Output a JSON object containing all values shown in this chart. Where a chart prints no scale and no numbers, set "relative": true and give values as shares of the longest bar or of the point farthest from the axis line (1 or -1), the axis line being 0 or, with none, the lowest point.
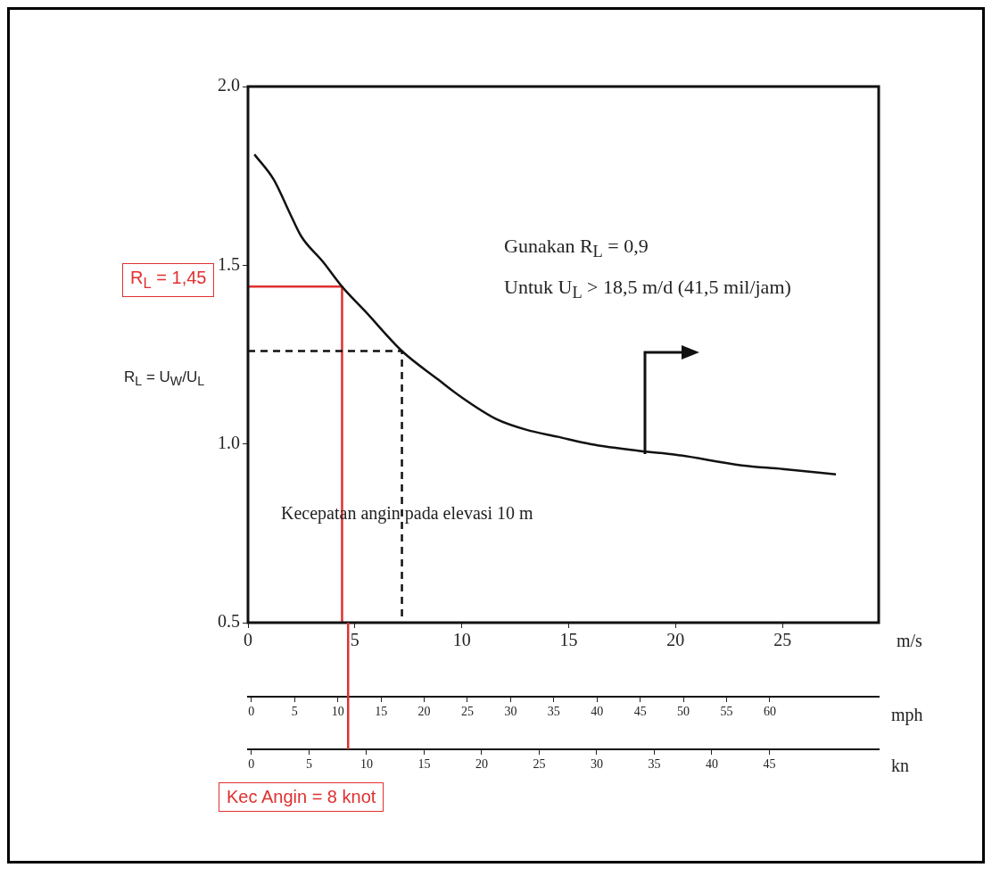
{
  "chart_data": [
    {
      "type": "line",
      "ylabel": "R$_{L}$ = U$_{W}$/U$_{L}$",
      "xlabel": "m/s",
      "x2label": "mph",
      "xlim": [
        0,
        29.5
      ],
      "xticks": [
        0,
        5,
        10,
        15,
        20,
        25
      ],
      "ylim": [
        0.5,
        2.0
      ],
      "yticks": [
        {
          "value": 0.5,
          "label": "0.5"
        },
        {
          "value": 1,
          "label": "1.0"
        },
        {
          "value": 1.5,
          "label": "1.5"
        },
        {
          "value": 2,
          "label": "2.0"
        }
      ],
      "x2lim": [
        -0.4,
        72.6
      ],
      "x2ticks": [
        0,
        5,
        10,
        15,
        20,
        25,
        30,
        35,
        40,
        45,
        50,
        55,
        60
      ],
      "marker": "none",
      "grid": false,
      "legend": false,
      "series": [
        {
          "color": "#111111",
          "line_style": "solid",
          "x": [
            0.3,
            1.2,
            2,
            2.5,
            3.5,
            4.4,
            5.5,
            7.2,
            8.9,
            10,
            11.6,
            13,
            14.5,
            16,
            18.4,
            20,
            23.1,
            25,
            27.5
          ],
          "values": [
            1.81,
            1.74,
            1.64,
            1.58,
            1.51,
            1.44,
            1.37,
            1.26,
            1.18,
            1.13,
            1.07,
            1.04,
            1.02,
            1.0,
            0.98,
            0.97,
            0.94,
            0.93,
            0.915
          ]
        },
        {
          "color": "#111111",
          "line_style": "dashed",
          "x": [
            0,
            7.2,
            7.2
          ],
          "values": [
            1.26,
            1.26,
            0.5
          ]
        },
        {
          "color": "#e03030",
          "line_style": "solid",
          "x": [
            0,
            4.4,
            4.4
          ],
          "values": [
            1.44,
            1.44,
            0.5
          ]
        }
      ],
      "annotations": [
        "R$_{L}$ = 1,45",
        "Kec Angin = 8 knot",
        "Gunakan R$_{L}$ = 0,9",
        "Untuk U$_{L}$ > 18,5 m/d (41,5 mil/jam)",
        "Kecepatan angin pada elevasi 10 m"
      ]
    },
    {
      "type": "line",
      "relative": true,
      "xlabel": "kn",
      "xlim": [
        -0.3,
        54.5
      ],
      "xticks": [
        0,
        5,
        10,
        15,
        20,
        25,
        30,
        35,
        40,
        45
      ],
      "marker": "none",
      "series": [
        {
          "color": "#e03030",
          "line_style": "solid",
          "x": [
            8.4,
            8.4
          ],
          "values": [
            0,
            1
          ]
        }
      ]
    }
  ]
}
